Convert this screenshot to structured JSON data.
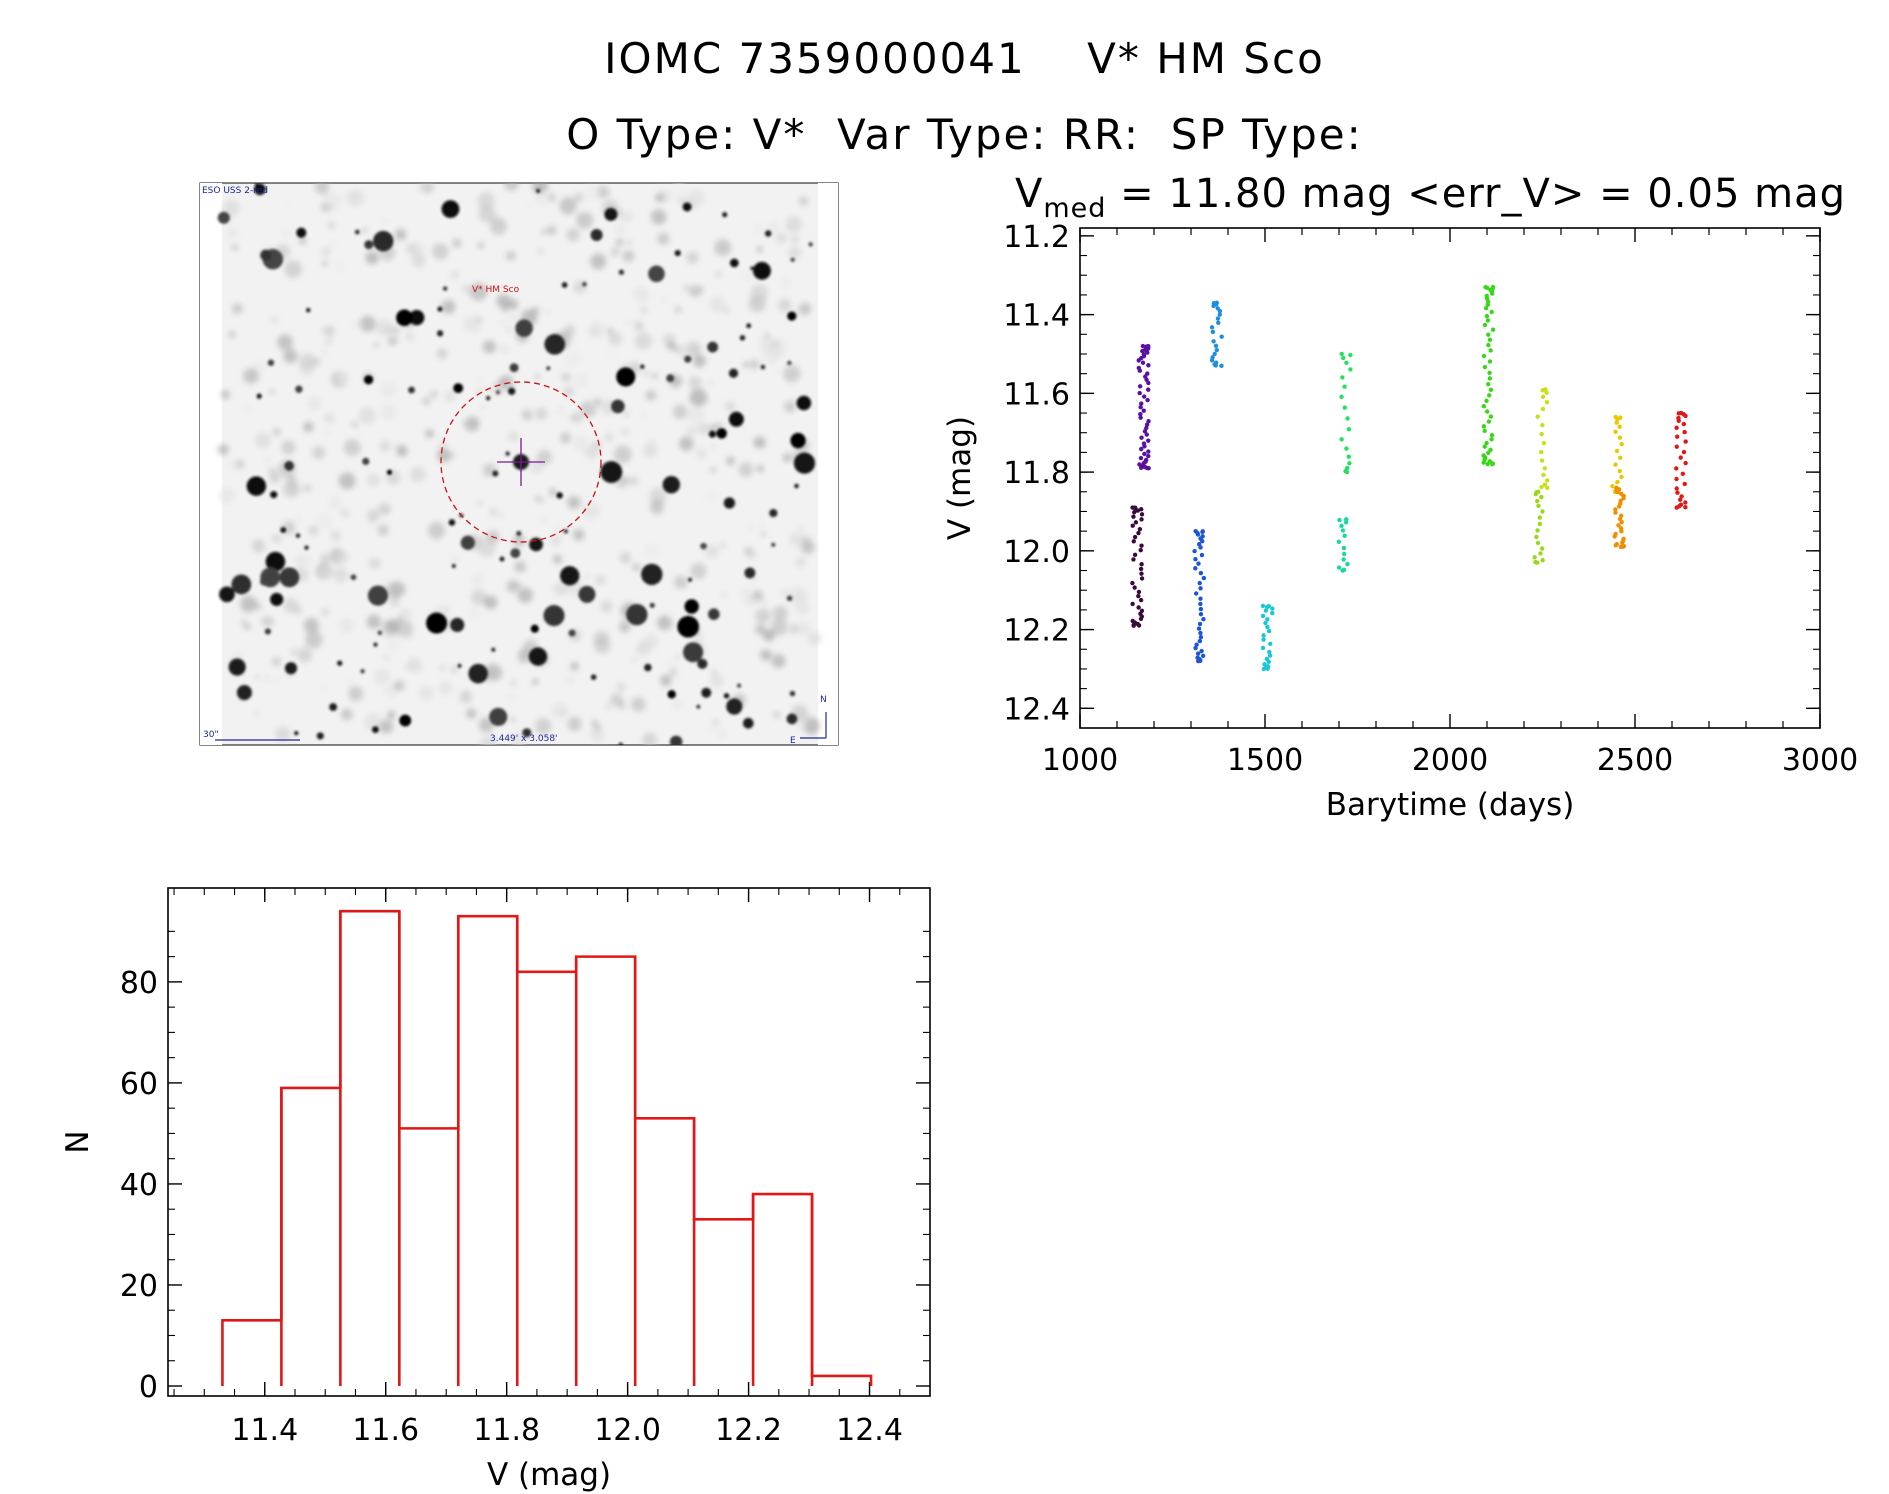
{
  "header": {
    "line1": "IOMC 7359000041    V* HM Sco",
    "line2": "O Type: V*  Var Type: RR:  SP Type:"
  },
  "image_panel": {
    "survey_label": "ESO USS 2-red",
    "target_label": "V* HM Sco",
    "scale_label": "30\"",
    "fov_label": "3.449' x 3.058'",
    "north_label": "N",
    "east_label": "E",
    "colors": {
      "target": "#cc1111",
      "annotation": "#1a2a9a",
      "marker": "#7a1a9a"
    }
  },
  "chart_data": [
    {
      "type": "scatter",
      "title_prefix": "V",
      "title_subscript": "med",
      "title_rest": " = 11.80 mag <err_V> = 0.05 mag",
      "xlabel": "Barytime (days)",
      "ylabel": "V (mag)",
      "xlim": [
        1000,
        3000
      ],
      "ylim": [
        12.45,
        11.18
      ],
      "x_ticks": [
        1000,
        1500,
        2000,
        2500,
        3000
      ],
      "y_ticks": [
        "11.2",
        "11.4",
        "11.6",
        "11.8",
        "12.0",
        "12.2",
        "12.4"
      ],
      "grid": false,
      "groups": [
        {
          "x": 1155,
          "ymin": 11.89,
          "ymax": 12.19,
          "color": "#3a0a3a",
          "n": 40
        },
        {
          "x": 1172,
          "ymin": 11.48,
          "ymax": 11.79,
          "color": "#5a10a0",
          "n": 55
        },
        {
          "x": 1322,
          "ymin": 11.95,
          "ymax": 12.28,
          "color": "#1c55d8",
          "n": 40
        },
        {
          "x": 1370,
          "ymin": 11.37,
          "ymax": 11.53,
          "color": "#1f8ee0",
          "n": 22
        },
        {
          "x": 1508,
          "ymin": 12.14,
          "ymax": 12.3,
          "color": "#18c8d8",
          "n": 24
        },
        {
          "x": 1713,
          "ymin": 11.92,
          "ymax": 12.05,
          "color": "#18d8a0",
          "n": 14
        },
        {
          "x": 1718,
          "ymin": 11.5,
          "ymax": 11.8,
          "color": "#28e060",
          "n": 18
        },
        {
          "x": 2103,
          "ymin": 11.33,
          "ymax": 11.78,
          "color": "#38d818",
          "n": 50
        },
        {
          "x": 2242,
          "ymin": 11.85,
          "ymax": 12.03,
          "color": "#9ad818",
          "n": 18
        },
        {
          "x": 2250,
          "ymin": 11.59,
          "ymax": 11.84,
          "color": "#c8e018",
          "n": 18
        },
        {
          "x": 2452,
          "ymin": 11.66,
          "ymax": 11.85,
          "color": "#e8c800",
          "n": 18
        },
        {
          "x": 2458,
          "ymin": 11.84,
          "ymax": 11.99,
          "color": "#f09000",
          "n": 30
        },
        {
          "x": 2625,
          "ymin": 11.65,
          "ymax": 11.89,
          "color": "#e01818",
          "n": 28
        }
      ]
    },
    {
      "type": "bar",
      "xlabel": "V (mag)",
      "ylabel": "N",
      "xlim": [
        11.24,
        12.5
      ],
      "ylim": [
        0,
        97
      ],
      "x_ticks": [
        "11.4",
        "11.6",
        "11.8",
        "12.0",
        "12.2",
        "12.4"
      ],
      "y_ticks": [
        "0",
        "20",
        "40",
        "60",
        "80"
      ],
      "bin_width": 0.0975,
      "bin_starts": [
        11.33,
        11.4275,
        11.525,
        11.6225,
        11.72,
        11.8175,
        11.915,
        12.0125,
        12.11,
        12.2075,
        12.305
      ],
      "values": [
        13,
        59,
        94,
        51,
        93,
        82,
        85,
        53,
        33,
        38,
        2
      ],
      "color": "#e01818"
    }
  ]
}
